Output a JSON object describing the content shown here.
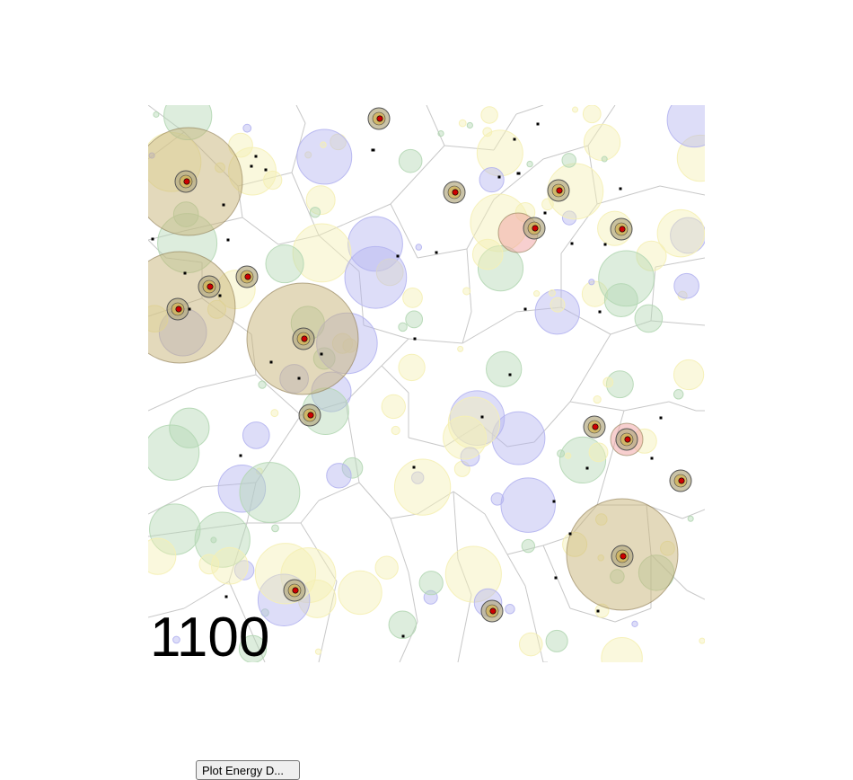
{
  "simulation": {
    "step_counter": "1100"
  },
  "controls": {
    "plot_button_label": "Plot Energy D..."
  },
  "colors": {
    "background": "#ffffff",
    "voronoi_edge": "#c8c8c8",
    "food_blue": "#b4b4f0",
    "food_green": "#b4d7b4",
    "food_yellow": "#f5f0b4",
    "creature_body": "#cc0000",
    "agent_halo_tan": "#c8b478",
    "agent_halo_pink": "#f0a0a0"
  }
}
